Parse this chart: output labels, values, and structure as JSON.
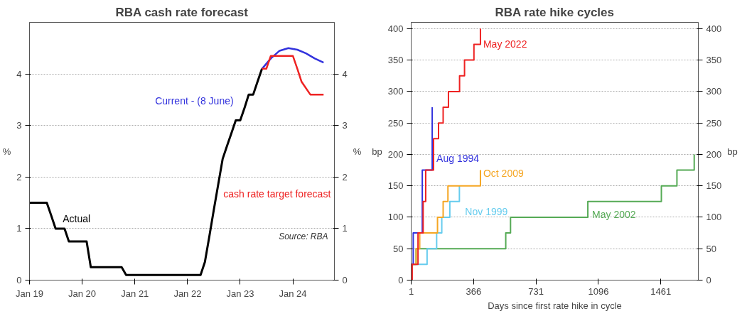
{
  "chart_data": [
    {
      "type": "line",
      "title": "RBA cash rate forecast",
      "ylabel": "%",
      "y2label": "%",
      "xlim": [
        "2019-01-01",
        "2024-10-15"
      ],
      "ylim": [
        0,
        5
      ],
      "y2lim": [
        0,
        5
      ],
      "xticks": [
        {
          "value": "2019-01-01",
          "label": "Jan 19"
        },
        {
          "value": "2020-01-01",
          "label": "Jan 20"
        },
        {
          "value": "2021-01-01",
          "label": "Jan 21"
        },
        {
          "value": "2022-01-01",
          "label": "Jan 22"
        },
        {
          "value": "2023-01-01",
          "label": "Jan 23"
        },
        {
          "value": "2024-01-01",
          "label": "Jan 24"
        }
      ],
      "yticks": [
        0,
        1,
        2,
        3,
        4
      ],
      "y2ticks": [
        0,
        1,
        2,
        3,
        4
      ],
      "grid": "y",
      "legend": false,
      "annotations": [
        "Source: RBA"
      ],
      "series": [
        {
          "name": "Actual",
          "color": "#000000",
          "x": [
            "2019-01",
            "2019-05",
            "2019-06",
            "2019-07",
            "2019-09",
            "2019-10",
            "2020-02",
            "2020-03",
            "2020-10",
            "2020-11",
            "2022-04",
            "2022-05",
            "2022-06",
            "2022-07",
            "2022-08",
            "2022-09",
            "2022-10",
            "2022-11",
            "2022-12",
            "2023-01",
            "2023-02",
            "2023-03",
            "2023-04",
            "2023-05",
            "2023-06"
          ],
          "values": [
            1.5,
            1.5,
            1.25,
            1.0,
            1.0,
            0.75,
            0.75,
            0.25,
            0.25,
            0.1,
            0.1,
            0.35,
            0.85,
            1.35,
            1.85,
            2.35,
            2.6,
            2.85,
            3.1,
            3.1,
            3.35,
            3.6,
            3.6,
            3.85,
            4.1
          ]
        },
        {
          "name": "Current - (8 June)",
          "color": "#3333dd",
          "x": [
            "2023-06",
            "2023-08",
            "2023-10",
            "2023-12",
            "2024-02",
            "2024-04",
            "2024-06",
            "2024-08"
          ],
          "values": [
            4.1,
            4.3,
            4.45,
            4.5,
            4.47,
            4.4,
            4.3,
            4.22
          ]
        },
        {
          "name": "cash rate target forecast",
          "color": "#ee2222",
          "x": [
            "2023-06",
            "2023-07",
            "2023-08",
            "2024-01",
            "2024-02",
            "2024-03",
            "2024-05",
            "2024-08"
          ],
          "values": [
            4.1,
            4.1,
            4.35,
            4.35,
            4.1,
            3.85,
            3.6,
            3.6
          ]
        }
      ]
    },
    {
      "type": "step",
      "title": "RBA rate hike cycles",
      "ylabel": "bp",
      "y2label": "bp",
      "xlabel": "Days since first rate hike in cycle",
      "xlim": [
        1,
        1680
      ],
      "ylim": [
        0,
        410
      ],
      "y2lim": [
        0,
        410
      ],
      "xticks": [
        1,
        366,
        731,
        1096,
        1461
      ],
      "yticks": [
        0,
        50,
        100,
        150,
        200,
        250,
        300,
        350,
        400
      ],
      "y2ticks": [
        0,
        50,
        100,
        150,
        200,
        250,
        300,
        350,
        400
      ],
      "grid": "y",
      "legend": false,
      "series": [
        {
          "name": "May 2002",
          "color": "#55aa55",
          "x": [
            1,
            30,
            554,
            582,
            1034,
            1464,
            1555,
            1656
          ],
          "values": [
            25,
            50,
            75,
            100,
            125,
            150,
            175,
            200
          ]
        },
        {
          "name": "Nov 1999",
          "color": "#66ccee",
          "x": [
            1,
            94,
            150,
            180,
            227,
            283
          ],
          "values": [
            25,
            50,
            75,
            100,
            125,
            150
          ]
        },
        {
          "name": "Oct 2009",
          "color": "#f5a623",
          "x": [
            1,
            30,
            51,
            155,
            188,
            216,
            406
          ],
          "values": [
            25,
            50,
            75,
            100,
            125,
            150,
            175
          ]
        },
        {
          "name": "Aug 1994",
          "color": "#3333dd",
          "x": [
            1,
            13,
            66,
            124
          ],
          "values": [
            25,
            75,
            175,
            275
          ]
        },
        {
          "name": "May 2022",
          "color": "#ee2222",
          "x": [
            1,
            7,
            41,
            71,
            86,
            132,
            161,
            188,
            219,
            284,
            313,
            368,
            406
          ],
          "values": [
            0,
            25,
            75,
            125,
            175,
            225,
            250,
            275,
            300,
            325,
            350,
            375,
            400
          ]
        }
      ]
    }
  ]
}
